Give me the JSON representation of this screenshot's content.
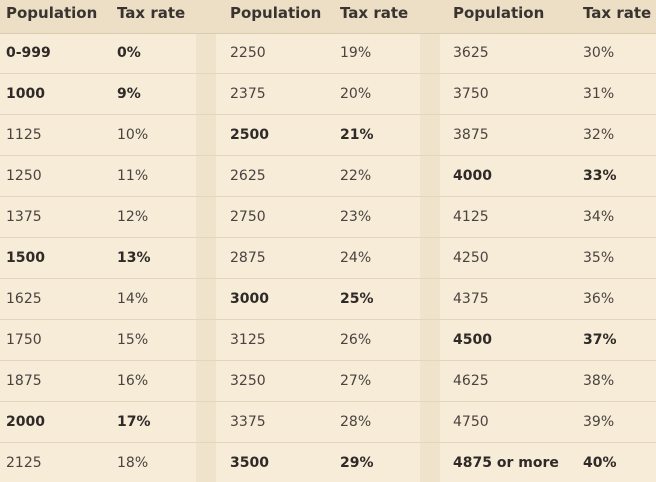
{
  "headers": [
    "Population",
    "Tax rate",
    "Population",
    "Tax rate",
    "Population",
    "Tax rate"
  ],
  "rows": [
    [
      {
        "p": "0-999",
        "t": "0%",
        "b": true
      },
      {
        "p": "2250",
        "t": "19%",
        "b": false
      },
      {
        "p": "3625",
        "t": "30%",
        "b": false
      }
    ],
    [
      {
        "p": "1000",
        "t": "9%",
        "b": true
      },
      {
        "p": "2375",
        "t": "20%",
        "b": false
      },
      {
        "p": "3750",
        "t": "31%",
        "b": false
      }
    ],
    [
      {
        "p": "1125",
        "t": "10%",
        "b": false
      },
      {
        "p": "2500",
        "t": "21%",
        "b": true
      },
      {
        "p": "3875",
        "t": "32%",
        "b": false
      }
    ],
    [
      {
        "p": "1250",
        "t": "11%",
        "b": false
      },
      {
        "p": "2625",
        "t": "22%",
        "b": false
      },
      {
        "p": "4000",
        "t": "33%",
        "b": true
      }
    ],
    [
      {
        "p": "1375",
        "t": "12%",
        "b": false
      },
      {
        "p": "2750",
        "t": "23%",
        "b": false
      },
      {
        "p": "4125",
        "t": "34%",
        "b": false
      }
    ],
    [
      {
        "p": "1500",
        "t": "13%",
        "b": true
      },
      {
        "p": "2875",
        "t": "24%",
        "b": false
      },
      {
        "p": "4250",
        "t": "35%",
        "b": false
      }
    ],
    [
      {
        "p": "1625",
        "t": "14%",
        "b": false
      },
      {
        "p": "3000",
        "t": "25%",
        "b": true
      },
      {
        "p": "4375",
        "t": "36%",
        "b": false
      }
    ],
    [
      {
        "p": "1750",
        "t": "15%",
        "b": false
      },
      {
        "p": "3125",
        "t": "26%",
        "b": false
      },
      {
        "p": "4500",
        "t": "37%",
        "b": true
      }
    ],
    [
      {
        "p": "1875",
        "t": "16%",
        "b": false
      },
      {
        "p": "3250",
        "t": "27%",
        "b": false
      },
      {
        "p": "4625",
        "t": "38%",
        "b": false
      }
    ],
    [
      {
        "p": "2000",
        "t": "17%",
        "b": true
      },
      {
        "p": "3375",
        "t": "28%",
        "b": false
      },
      {
        "p": "4750",
        "t": "39%",
        "b": false
      }
    ],
    [
      {
        "p": "2125",
        "t": "18%",
        "b": false
      },
      {
        "p": "3500",
        "t": "29%",
        "b": true
      },
      {
        "p": "4875 or more",
        "t": "40%",
        "b": true
      }
    ]
  ]
}
